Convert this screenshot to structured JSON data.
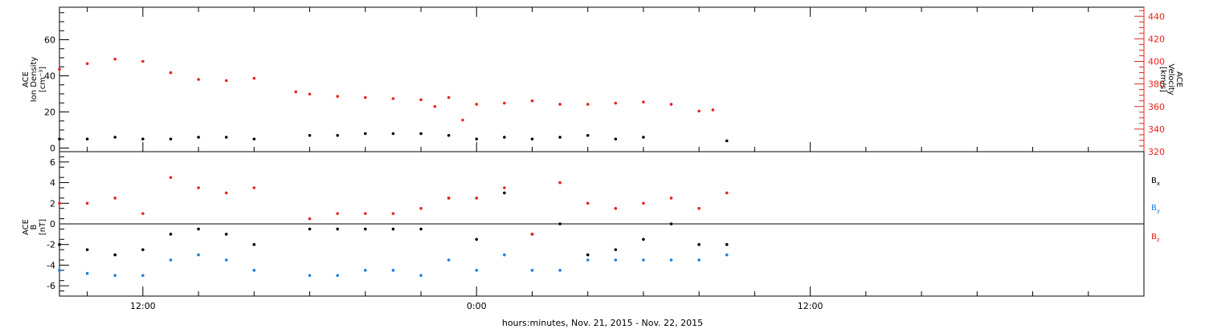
{
  "chart_data": [
    {
      "type": "scatter",
      "panel": "top",
      "ylabel": [
        "ACE",
        "Ion Density",
        "[cm⁻³]"
      ],
      "ylim": [
        -2,
        78
      ],
      "y_ticks": [
        "0",
        "20",
        "40",
        "60"
      ],
      "y_tick_values": [
        0,
        20,
        40,
        60
      ],
      "right_axis": {
        "ylabel": [
          "ACE",
          "Velocity",
          "[km/s]"
        ],
        "ylim": [
          320,
          448
        ],
        "ticks": [
          "320",
          "340",
          "360",
          "380",
          "400",
          "420",
          "440"
        ],
        "tick_values": [
          320,
          340,
          360,
          380,
          400,
          420,
          440
        ],
        "color": "#e8231c"
      },
      "series": [
        {
          "color": "#000000",
          "axis": "left",
          "x": [
            9.0,
            10.0,
            11.0,
            12.0,
            13.0,
            14.0,
            15.0,
            16.0,
            18.0,
            19.0,
            20.0,
            21.0,
            22.0,
            23.0,
            24.0,
            25.0,
            26.0,
            27.0,
            28.0,
            29.0,
            30.0,
            33.0
          ],
          "values": [
            5,
            5,
            6,
            5,
            5,
            6,
            6,
            5,
            7,
            7,
            8,
            8,
            8,
            7,
            5,
            6,
            5,
            6,
            7,
            5,
            6,
            4
          ]
        },
        {
          "color": "#e8231c",
          "axis": "right",
          "x": [
            9.0,
            10.0,
            11.0,
            12.0,
            13.0,
            14.0,
            15.0,
            16.0,
            17.5,
            18.0,
            19.0,
            20.0,
            21.0,
            22.0,
            22.5,
            23.0,
            23.5,
            24.0,
            25.0,
            26.0,
            27.0,
            28.0,
            29.0,
            30.0,
            31.0,
            32.0,
            32.5
          ],
          "values": [
            393,
            398,
            402,
            400,
            390,
            384,
            383,
            385,
            373,
            371,
            369,
            368,
            367,
            366,
            360,
            368,
            348,
            362,
            363,
            365,
            362,
            362,
            363,
            364,
            362,
            356,
            357
          ]
        }
      ]
    },
    {
      "type": "scatter",
      "panel": "bottom",
      "ylabel": [
        "ACE",
        "B",
        "[nT]"
      ],
      "ylim": [
        -7,
        7
      ],
      "y_ticks": [
        "-6",
        "-4",
        "-2",
        "0",
        "2",
        "4",
        "6"
      ],
      "y_tick_values": [
        -6,
        -4,
        -2,
        0,
        2,
        4,
        6
      ],
      "legend": [
        "B",
        "B",
        "B"
      ],
      "legend_subscripts": [
        "x",
        "y",
        "z"
      ],
      "series": [
        {
          "name": "Bx",
          "color": "#000000",
          "x": [
            9.0,
            10.0,
            11.0,
            12.0,
            13.0,
            14.0,
            15.0,
            16.0,
            18.0,
            19.0,
            20.0,
            21.0,
            22.0,
            23.0,
            24.0,
            25.0,
            26.0,
            27.0,
            28.0,
            29.0,
            30.0,
            31.0,
            32.0,
            33.0
          ],
          "values": [
            -2,
            -2.5,
            -3,
            -2.5,
            -1,
            -0.5,
            -1,
            -2,
            -0.5,
            -0.5,
            -0.5,
            -0.5,
            -0.5,
            2.5,
            -1.5,
            3,
            -1,
            0,
            -3,
            -2.5,
            -1.5,
            0,
            -2,
            -2
          ]
        },
        {
          "name": "By",
          "color": "#1a7fdd",
          "x": [
            9.0,
            10.0,
            11.0,
            12.0,
            13.0,
            14.0,
            15.0,
            16.0,
            18.0,
            19.0,
            20.0,
            21.0,
            22.0,
            23.0,
            24.0,
            25.0,
            26.0,
            27.0,
            28.0,
            29.0,
            30.0,
            31.0,
            32.0,
            33.0
          ],
          "values": [
            -4.5,
            -4.8,
            -5,
            -5,
            -3.5,
            -3,
            -3.5,
            -4.5,
            -5,
            -5,
            -4.5,
            -4.5,
            -5,
            -3.5,
            -4.5,
            -3,
            -4.5,
            -4.5,
            -3.5,
            -3.5,
            -3.5,
            -3.5,
            -3.5,
            -3
          ]
        },
        {
          "name": "Bz",
          "color": "#e8231c",
          "x": [
            9.0,
            10.0,
            11.0,
            12.0,
            13.0,
            14.0,
            15.0,
            16.0,
            18.0,
            19.0,
            20.0,
            21.0,
            22.0,
            23.0,
            24.0,
            25.0,
            26.0,
            27.0,
            28.0,
            29.0,
            30.0,
            31.0,
            32.0,
            33.0
          ],
          "values": [
            2,
            2,
            2.5,
            1,
            4.5,
            3.5,
            3,
            3.5,
            0.5,
            1,
            1,
            1,
            1.5,
            2.5,
            2.5,
            3.5,
            -1,
            4,
            2,
            1.5,
            2,
            2.5,
            1.5,
            3
          ]
        }
      ]
    }
  ],
  "x_axis": {
    "range_hours": [
      9.0,
      48.0
    ],
    "major_tick_labels": [
      "12:00",
      "0:00",
      "12:00"
    ],
    "major_tick_hours": [
      12,
      24,
      36
    ],
    "label": "hours:minutes, Nov. 21, 2015 - Nov. 22, 2015"
  }
}
